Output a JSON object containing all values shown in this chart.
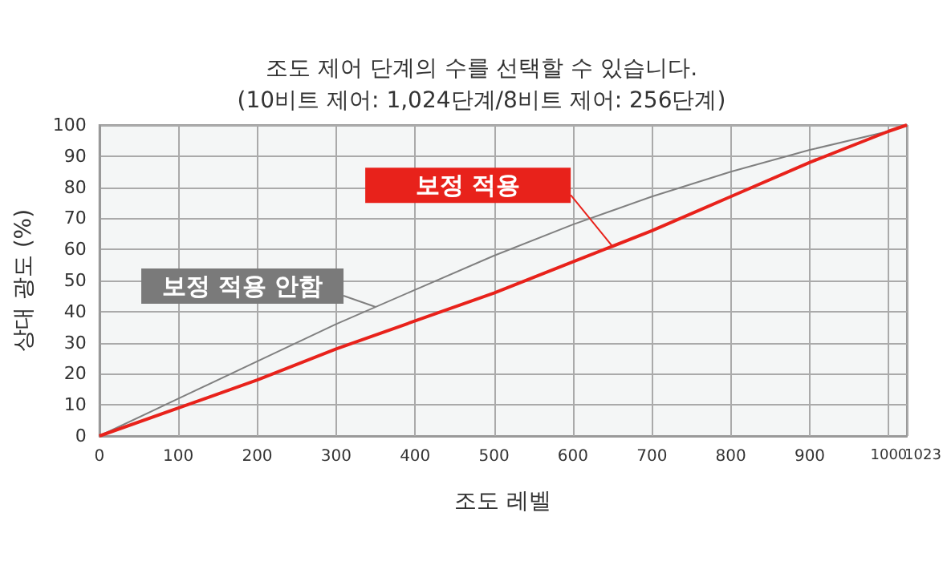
{
  "chart_data": {
    "type": "line",
    "title": "조도 제어 단계의 수를 선택할 수 있습니다.\n(10비트 제어: 1,024단계/8비트 제어: 256단계)",
    "xlabel": "조도 레벨",
    "ylabel": "상대 광도 (%)",
    "x": [
      0,
      100,
      200,
      300,
      400,
      500,
      600,
      700,
      800,
      900,
      1000,
      1023
    ],
    "series": [
      {
        "name": "보정 적용 안함",
        "color": "#808080",
        "values": [
          0,
          12,
          24,
          36,
          47,
          58,
          68,
          77,
          85,
          92,
          98,
          100
        ]
      },
      {
        "name": "보정 적용",
        "color": "#e8221b",
        "values": [
          0,
          9,
          18,
          28,
          37,
          46,
          56,
          66,
          77,
          88,
          98,
          100
        ]
      }
    ],
    "xlim": [
      0,
      1023
    ],
    "ylim": [
      0,
      100
    ],
    "xticks": [
      0,
      100,
      200,
      300,
      400,
      500,
      600,
      700,
      800,
      900,
      1000,
      1023
    ],
    "yticks": [
      0,
      10,
      20,
      30,
      40,
      50,
      60,
      70,
      80,
      90,
      100
    ],
    "grid": true,
    "legend": "left",
    "marker": "none",
    "line_style": "solid"
  }
}
